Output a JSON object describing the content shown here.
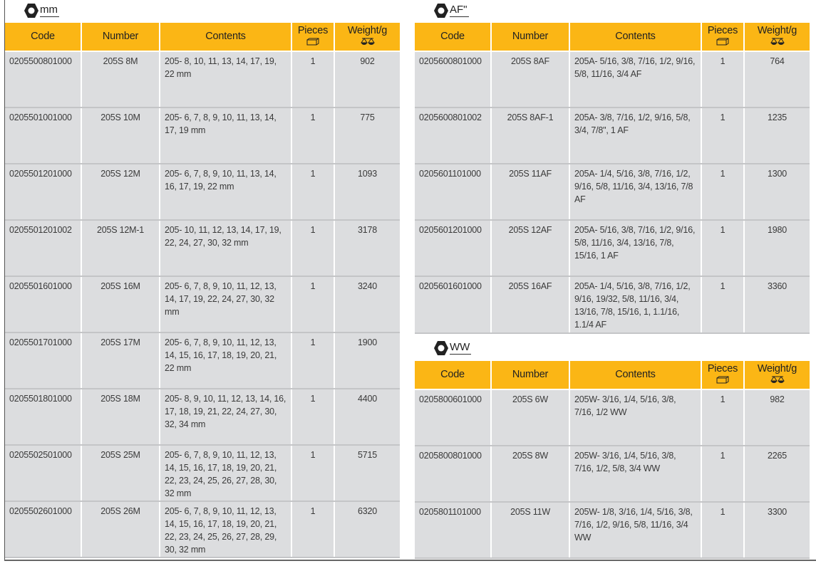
{
  "colors": {
    "header": "#fbb615",
    "row": "#dcdddf"
  },
  "columns": {
    "code": "Code",
    "number": "Number",
    "contents": "Contents",
    "pieces": "Pieces",
    "weight": "Weight/g",
    "pieces_icon": "box-icon",
    "weight_icon": "scale-icon"
  },
  "sections": [
    {
      "unit": "mm",
      "icon": "hex-nut-icon",
      "rows": [
        {
          "code": "0205500801000",
          "number": "205S 8M",
          "contents": "205- 8, 10, 11, 13, 14, 17, 19, 22 mm",
          "pieces": "1",
          "weight": "902"
        },
        {
          "code": "0205501001000",
          "number": "205S 10M",
          "contents": "205- 6, 7, 8, 9, 10, 11, 13, 14, 17, 19 mm",
          "pieces": "1",
          "weight": "775"
        },
        {
          "code": "0205501201000",
          "number": "205S 12M",
          "contents": "205- 6, 7, 8, 9, 10, 11, 13, 14, 16, 17, 19, 22 mm",
          "pieces": "1",
          "weight": "1093"
        },
        {
          "code": "0205501201002",
          "number": "205S 12M-1",
          "contents": "205- 10, 11, 12, 13, 14, 17, 19, 22, 24, 27, 30, 32 mm",
          "pieces": "1",
          "weight": "3178"
        },
        {
          "code": "0205501601000",
          "number": "205S 16M",
          "contents": "205- 6, 7, 8, 9, 10, 11, 12, 13, 14, 17, 19, 22, 24, 27, 30, 32 mm",
          "pieces": "1",
          "weight": "3240"
        },
        {
          "code": "0205501701000",
          "number": "205S 17M",
          "contents": "205- 6, 7, 8, 9, 10, 11, 12, 13, 14, 15, 16, 17, 18, 19, 20, 21, 22 mm",
          "pieces": "1",
          "weight": "1900"
        },
        {
          "code": "0205501801000",
          "number": "205S 18M",
          "contents": "205- 8, 9, 10, 11, 12, 13, 14, 16, 17, 18, 19, 21, 22, 24, 27, 30, 32, 34 mm",
          "pieces": "1",
          "weight": "4400"
        },
        {
          "code": "0205502501000",
          "number": "205S 25M",
          "contents": "205- 6, 7, 8, 9, 10, 11, 12, 13, 14, 15, 16, 17, 18, 19, 20, 21, 22, 23, 24, 25, 26, 27, 28, 30, 32 mm",
          "pieces": "1",
          "weight": "5715"
        },
        {
          "code": "0205502601000",
          "number": "205S 26M",
          "contents": "205- 6, 7, 8, 9, 10, 11, 12, 13, 14, 15, 16, 17, 18, 19, 20, 21, 22, 23, 24, 25, 26, 27, 28, 29, 30, 32 mm",
          "pieces": "1",
          "weight": "6320"
        }
      ]
    },
    {
      "unit": "AF\"",
      "icon": "hex-nut-icon",
      "rows": [
        {
          "code": "0205600801000",
          "number": "205S 8AF",
          "contents": "205A- 5/16, 3/8, 7/16, 1/2, 9/16, 5/8, 11/16, 3/4 AF",
          "pieces": "1",
          "weight": "764"
        },
        {
          "code": "0205600801002",
          "number": "205S 8AF-1",
          "contents": "205A- 3/8, 7/16, 1/2, 9/16, 5/8, 3/4, 7/8\", 1 AF",
          "pieces": "1",
          "weight": "1235"
        },
        {
          "code": "0205601101000",
          "number": "205S 11AF",
          "contents": "205A- 1/4, 5/16, 3/8, 7/16, 1/2, 9/16, 5/8, 11/16, 3/4, 13/16, 7/8 AF",
          "pieces": "1",
          "weight": "1300"
        },
        {
          "code": "0205601201000",
          "number": "205S 12AF",
          "contents": "205A- 5/16, 3/8, 7/16, 1/2, 9/16, 5/8, 11/16, 3/4, 13/16, 7/8, 15/16, 1 AF",
          "pieces": "1",
          "weight": "1980"
        },
        {
          "code": "0205601601000",
          "number": "205S 16AF",
          "contents": "205A- 1/4, 5/16, 3/8, 7/16, 1/2, 9/16, 19/32, 5/8, 11/16, 3/4, 13/16, 7/8, 15/16, 1, 1.1/16, 1.1/4 AF",
          "pieces": "1",
          "weight": "3360"
        }
      ]
    },
    {
      "unit": "WW",
      "icon": "hex-nut-icon",
      "rows": [
        {
          "code": "0205800601000",
          "number": "205S 6W",
          "contents": "205W- 3/16, 1/4, 5/16, 3/8, 7/16, 1/2 WW",
          "pieces": "1",
          "weight": "982"
        },
        {
          "code": "0205800801000",
          "number": "205S 8W",
          "contents": "205W- 3/16, 1/4, 5/16, 3/8, 7/16, 1/2, 5/8, 3/4 WW",
          "pieces": "1",
          "weight": "2265"
        },
        {
          "code": "0205801101000",
          "number": "205S 11W",
          "contents": "205W- 1/8, 3/16, 1/4, 5/16, 3/8, 7/16, 1/2, 9/16, 5/8, 11/16, 3/4 WW",
          "pieces": "1",
          "weight": "3300"
        }
      ]
    }
  ]
}
